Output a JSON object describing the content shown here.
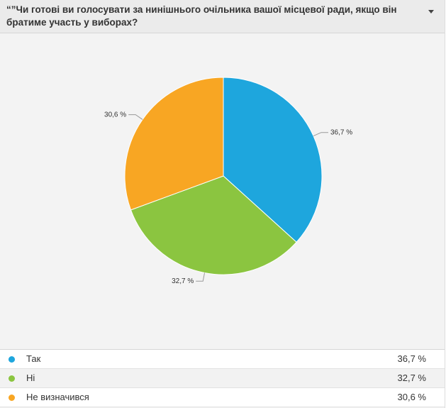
{
  "question": "“”Чи готові ви голосувати за нинішнього очільника вашої місцевої ради, якщо він братиме участь у виборах?",
  "chart_data": {
    "type": "pie",
    "slices": [
      {
        "label": "Так",
        "value": 36.7,
        "display": "36,7 %",
        "color": "#1ea6dd"
      },
      {
        "label": "Ні",
        "value": 32.7,
        "display": "32,7 %",
        "color": "#8bc540"
      },
      {
        "label": "Не визначився",
        "value": 30.6,
        "display": "30,6 %",
        "color": "#f8a623"
      }
    ]
  },
  "legend": [
    {
      "label": "Так",
      "value": "36,7 %",
      "color": "#1ea6dd"
    },
    {
      "label": "Ні",
      "value": "32,7 %",
      "color": "#8bc540"
    },
    {
      "label": "Не визначився",
      "value": "30,6 %",
      "color": "#f8a623"
    }
  ]
}
